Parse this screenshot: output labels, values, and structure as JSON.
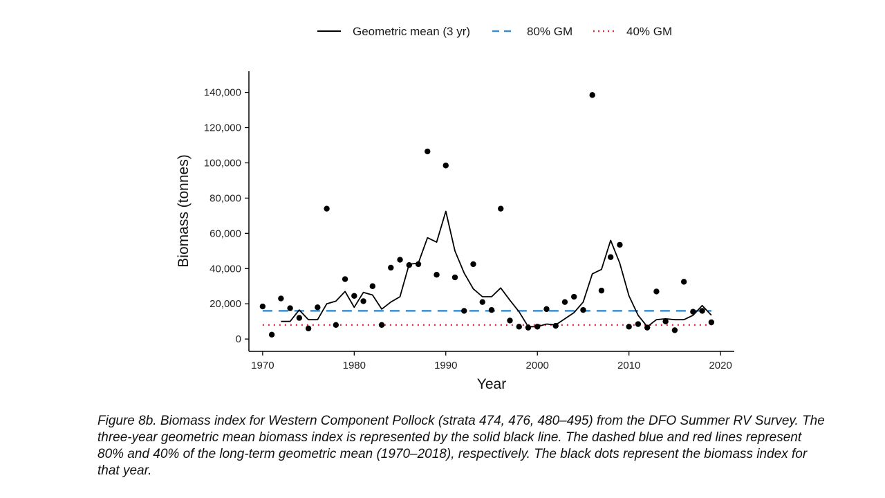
{
  "chart_data": {
    "type": "line",
    "xlabel": "Year",
    "ylabel": "Biomass (tonnes)",
    "xlim": [
      1968.5,
      2021.5
    ],
    "ylim": [
      -7000,
      152000
    ],
    "xticks": [
      1970,
      1980,
      1990,
      2000,
      2010,
      2020
    ],
    "yticks": [
      0,
      20000,
      40000,
      60000,
      80000,
      100000,
      120000,
      140000
    ],
    "ytick_labels": [
      "0",
      "20,000",
      "40,000",
      "60,000",
      "80,000",
      "100,000",
      "120,000",
      "140,000"
    ],
    "legend_position": "top",
    "grid": false,
    "legend": [
      {
        "label": "Geometric mean (3 yr)",
        "style": "solid",
        "color": "#000000"
      },
      {
        "label": "80% GM",
        "style": "dashed",
        "color": "#3a8fd0"
      },
      {
        "label": "40% GM",
        "style": "dotted",
        "color": "#d9303a"
      }
    ],
    "points": {
      "x": [
        1970,
        1971,
        1972,
        1973,
        1974,
        1975,
        1976,
        1977,
        1978,
        1979,
        1980,
        1981,
        1982,
        1983,
        1984,
        1985,
        1986,
        1987,
        1988,
        1989,
        1990,
        1991,
        1992,
        1993,
        1994,
        1995,
        1996,
        1997,
        1998,
        1999,
        2000,
        2001,
        2002,
        2003,
        2004,
        2005,
        2006,
        2007,
        2008,
        2009,
        2010,
        2011,
        2012,
        2013,
        2014,
        2015,
        2016,
        2017,
        2018,
        2019
      ],
      "y": [
        18500,
        2500,
        23000,
        17500,
        12000,
        6000,
        18000,
        74000,
        8000,
        34000,
        24500,
        21500,
        30000,
        8000,
        40500,
        45000,
        42000,
        42500,
        106500,
        36500,
        98500,
        35000,
        16000,
        42500,
        21000,
        16500,
        74000,
        10500,
        7000,
        6500,
        7000,
        17000,
        7500,
        21000,
        24000,
        16500,
        138500,
        27500,
        46500,
        53500,
        7000,
        8500,
        6500,
        27000,
        10000,
        5000,
        32500,
        15500,
        16000,
        9500
      ]
    },
    "series": [
      {
        "name": "Geometric mean (3 yr)",
        "x": [
          1972,
          1973,
          1974,
          1975,
          1976,
          1977,
          1978,
          1979,
          1980,
          1981,
          1982,
          1983,
          1984,
          1985,
          1986,
          1987,
          1988,
          1989,
          1990,
          1991,
          1992,
          1993,
          1994,
          1995,
          1996,
          1997,
          1998,
          1999,
          2000,
          2001,
          2002,
          2003,
          2004,
          2005,
          2006,
          2007,
          2008,
          2009,
          2010,
          2011,
          2012,
          2013,
          2014,
          2015,
          2016,
          2017,
          2018,
          2019
        ],
        "y": [
          10000,
          10000,
          16500,
          11000,
          11000,
          20000,
          21500,
          27000,
          18000,
          26500,
          25000,
          17000,
          21000,
          24000,
          42500,
          43000,
          57500,
          55000,
          72500,
          50000,
          37500,
          28500,
          24000,
          24000,
          29000,
          22000,
          15500,
          7000,
          7000,
          8500,
          8000,
          11500,
          15000,
          21000,
          37000,
          39500,
          56000,
          43000,
          24500,
          13500,
          7000,
          11000,
          11500,
          11000,
          11000,
          13500,
          19000,
          13500
        ]
      },
      {
        "name": "80% GM",
        "x": [
          1970,
          2019
        ],
        "y": [
          16000,
          16000
        ]
      },
      {
        "name": "40% GM",
        "x": [
          1970,
          2019
        ],
        "y": [
          8000,
          8000
        ]
      }
    ]
  },
  "caption": "Figure 8b. Biomass index for Western Component Pollock (strata 474, 476, 480–495) from the DFO Summer RV Survey. The three-year geometric mean biomass index is represented by the solid black line. The dashed blue and red lines represent 80% and 40% of the long-term geometric mean (1970–2018), respectively. The black dots represent the biomass index for that year."
}
